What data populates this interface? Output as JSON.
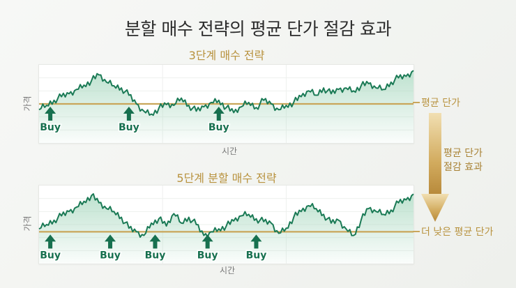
{
  "title": "분할 매수 전략의 평균 단가 절감 효과",
  "annotations": {
    "avg_price": "평균 단가",
    "lower_avg_price": "더 낮은 평균 단가",
    "effect_line1": "평균 단가",
    "effect_line2": "절감 효과"
  },
  "colors": {
    "line": "#1a7a55",
    "fill": "#a8d8bf",
    "avg_line": "#c9a65a",
    "accent_gold": "#b8923e",
    "buy": "#17704f"
  },
  "chart_data": [
    {
      "type": "line",
      "title": "3단계 매수 전략",
      "xlabel": "시간",
      "ylabel": "가격",
      "grid": true,
      "avg_price_level": 0.5,
      "buy_label": "Buy",
      "buy_points_x": [
        0.03,
        0.24,
        0.48
      ],
      "x": [
        0,
        0.02,
        0.04,
        0.06,
        0.08,
        0.1,
        0.12,
        0.14,
        0.16,
        0.18,
        0.2,
        0.22,
        0.24,
        0.26,
        0.28,
        0.3,
        0.32,
        0.34,
        0.36,
        0.38,
        0.4,
        0.42,
        0.44,
        0.46,
        0.48,
        0.5,
        0.52,
        0.54,
        0.56,
        0.58,
        0.6,
        0.62,
        0.64,
        0.66,
        0.68,
        0.7,
        0.72,
        0.74,
        0.76,
        0.78,
        0.8,
        0.82,
        0.84,
        0.86,
        0.88,
        0.9,
        0.92,
        0.94,
        0.96,
        0.98,
        1.0
      ],
      "values": [
        0.42,
        0.48,
        0.55,
        0.6,
        0.64,
        0.7,
        0.76,
        0.82,
        0.9,
        0.8,
        0.75,
        0.72,
        0.62,
        0.5,
        0.4,
        0.36,
        0.44,
        0.49,
        0.48,
        0.58,
        0.48,
        0.4,
        0.46,
        0.52,
        0.55,
        0.45,
        0.38,
        0.46,
        0.52,
        0.45,
        0.55,
        0.5,
        0.42,
        0.48,
        0.52,
        0.6,
        0.68,
        0.62,
        0.72,
        0.64,
        0.7,
        0.72,
        0.68,
        0.75,
        0.78,
        0.72,
        0.7,
        0.8,
        0.86,
        0.88,
        0.96
      ]
    },
    {
      "type": "line",
      "title": "5단계 분할 매수 전략",
      "xlabel": "시간",
      "ylabel": "가격",
      "grid": true,
      "avg_price_level": 0.4,
      "buy_label": "Buy",
      "buy_points_x": [
        0.03,
        0.19,
        0.31,
        0.45,
        0.58
      ],
      "x": [
        0,
        0.02,
        0.04,
        0.06,
        0.08,
        0.1,
        0.12,
        0.14,
        0.16,
        0.18,
        0.2,
        0.22,
        0.24,
        0.26,
        0.28,
        0.3,
        0.32,
        0.34,
        0.36,
        0.38,
        0.4,
        0.42,
        0.44,
        0.46,
        0.48,
        0.5,
        0.52,
        0.54,
        0.56,
        0.58,
        0.6,
        0.62,
        0.64,
        0.66,
        0.68,
        0.7,
        0.72,
        0.74,
        0.76,
        0.78,
        0.8,
        0.82,
        0.84,
        0.86,
        0.88,
        0.9,
        0.92,
        0.94,
        0.96,
        0.98,
        1.0
      ],
      "values": [
        0.44,
        0.5,
        0.56,
        0.62,
        0.68,
        0.74,
        0.82,
        0.9,
        0.8,
        0.72,
        0.68,
        0.6,
        0.45,
        0.4,
        0.35,
        0.52,
        0.58,
        0.48,
        0.65,
        0.52,
        0.6,
        0.5,
        0.35,
        0.4,
        0.44,
        0.48,
        0.55,
        0.62,
        0.64,
        0.58,
        0.54,
        0.52,
        0.38,
        0.45,
        0.6,
        0.68,
        0.76,
        0.72,
        0.64,
        0.52,
        0.56,
        0.44,
        0.35,
        0.56,
        0.72,
        0.68,
        0.64,
        0.7,
        0.8,
        0.84,
        0.92
      ]
    }
  ]
}
